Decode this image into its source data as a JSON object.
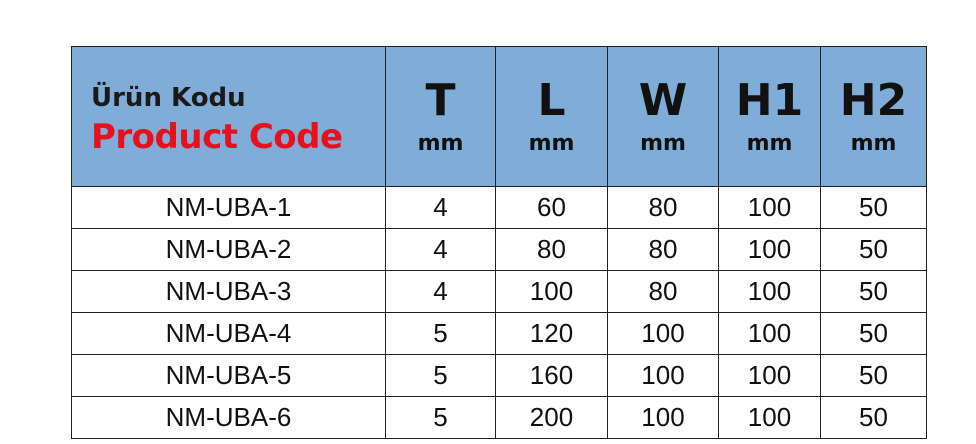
{
  "header": {
    "code_tr": "Ürün Kodu",
    "code_en": "Product Code",
    "columns": [
      {
        "symbol": "T",
        "unit": "mm"
      },
      {
        "symbol": "L",
        "unit": "mm"
      },
      {
        "symbol": "W",
        "unit": "mm"
      },
      {
        "symbol": "H1",
        "unit": "mm"
      },
      {
        "symbol": "H2",
        "unit": "mm"
      }
    ]
  },
  "colors": {
    "header_bg": "#80acd8",
    "accent_red": "#e8101c"
  },
  "rows": [
    [
      "NM-UBA-1",
      "4",
      "60",
      "80",
      "100",
      "50"
    ],
    [
      "NM-UBA-2",
      "4",
      "80",
      "80",
      "100",
      "50"
    ],
    [
      "NM-UBA-3",
      "4",
      "100",
      "80",
      "100",
      "50"
    ],
    [
      "NM-UBA-4",
      "5",
      "120",
      "100",
      "100",
      "50"
    ],
    [
      "NM-UBA-5",
      "5",
      "160",
      "100",
      "100",
      "50"
    ],
    [
      "NM-UBA-6",
      "5",
      "200",
      "100",
      "100",
      "50"
    ]
  ]
}
